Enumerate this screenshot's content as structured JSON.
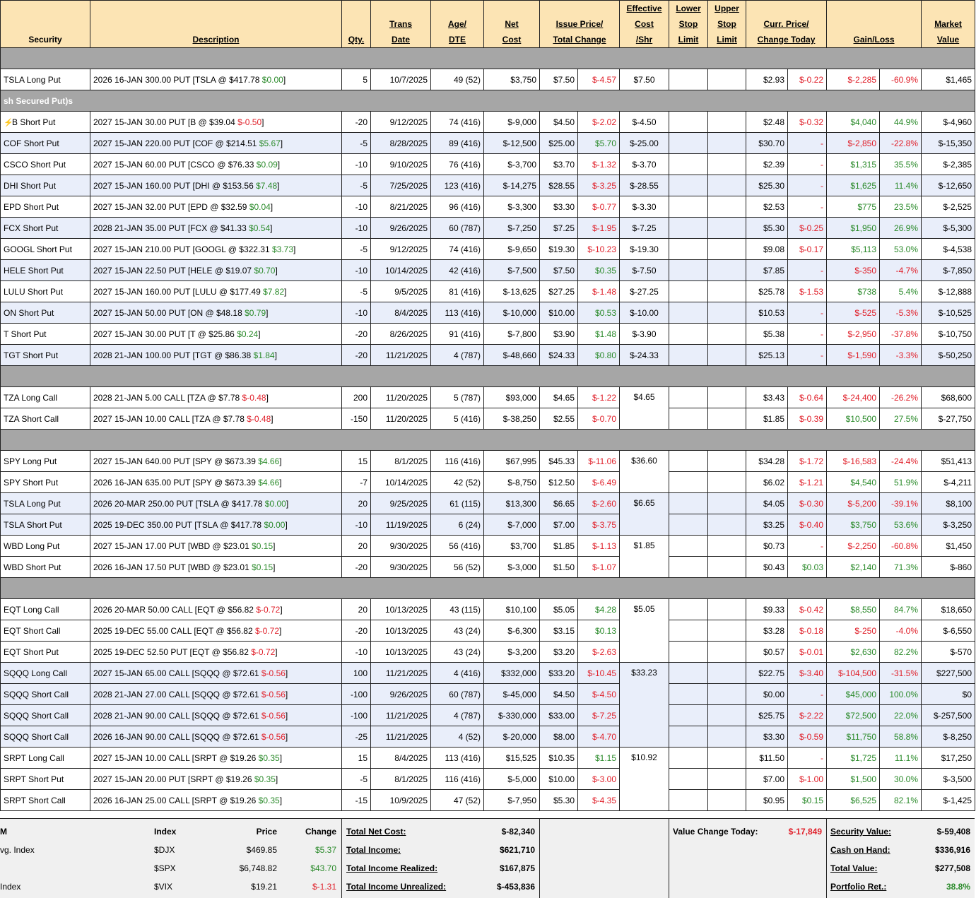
{
  "headers": {
    "security": [
      "Security"
    ],
    "description": [
      "Description"
    ],
    "qty": [
      "Qty."
    ],
    "trans_date": [
      "Trans",
      "Date"
    ],
    "age_dte": [
      "Age/",
      "DTE"
    ],
    "net_cost": [
      "Net",
      "Cost"
    ],
    "issue_price": [
      "Issue Price/",
      "Total Change"
    ],
    "effective_cost": [
      "Effective",
      "Cost",
      "/Shr"
    ],
    "lower_stop": [
      "Lower",
      "Stop",
      "Limit"
    ],
    "upper_stop": [
      "Upper",
      "Stop",
      "Limit"
    ],
    "curr_price": [
      "Curr. Price/",
      "Change Today"
    ],
    "gain_loss": [
      "Gain/Loss"
    ],
    "market_value": [
      "Market",
      "Value"
    ]
  },
  "rows": [
    {
      "type": "section",
      "label": ""
    },
    {
      "sec": "TSLA Long Put",
      "desc": "2026 16-JAN 300.00 PUT [TSLA @ $417.78",
      "dchg": "$0.00",
      "dcls": "pos",
      "qty": "5",
      "date": "10/7/2025",
      "age": "49 (52)",
      "cost": "$3,750",
      "issue": "$7.50",
      "tchg": "$-4.57",
      "tcls": "neg",
      "eff": "$7.50",
      "cur": "$2.93",
      "cchg": "$-0.22",
      "ccls": "neg",
      "gl": "$-2,285",
      "glp": "-60.9%",
      "gcls": "neg",
      "mv": "$1,465",
      "alt": false
    },
    {
      "type": "section",
      "label": "sh Secured Put)s"
    },
    {
      "sec": "B Short Put",
      "bolt": true,
      "desc": "2027 15-JAN 30.00 PUT [B @ $39.04",
      "dchg": "$-0.50",
      "dcls": "neg",
      "qty": "-20",
      "date": "9/12/2025",
      "age": "74 (416)",
      "cost": "$-9,000",
      "issue": "$4.50",
      "tchg": "$-2.02",
      "tcls": "neg",
      "eff": "$-4.50",
      "cur": "$2.48",
      "cchg": "$-0.32",
      "ccls": "neg",
      "gl": "$4,040",
      "glp": "44.9%",
      "gcls": "pos",
      "mv": "$-4,960",
      "alt": false
    },
    {
      "sec": "COF Short Put",
      "desc": "2027 15-JAN 220.00 PUT [COF @ $214.51",
      "dchg": "$5.67",
      "dcls": "pos",
      "qty": "-5",
      "date": "8/28/2025",
      "age": "89 (416)",
      "cost": "$-12,500",
      "issue": "$25.00",
      "tchg": "$5.70",
      "tcls": "pos",
      "eff": "$-25.00",
      "cur": "$30.70",
      "cchg": "-",
      "ccls": "neg",
      "gl": "$-2,850",
      "glp": "-22.8%",
      "gcls": "neg",
      "mv": "$-15,350",
      "alt": true
    },
    {
      "sec": "CSCO Short Put",
      "desc": "2027 15-JAN 60.00 PUT [CSCO @ $76.33",
      "dchg": "$0.09",
      "dcls": "pos",
      "qty": "-10",
      "date": "9/10/2025",
      "age": "76 (416)",
      "cost": "$-3,700",
      "issue": "$3.70",
      "tchg": "$-1.32",
      "tcls": "neg",
      "eff": "$-3.70",
      "cur": "$2.39",
      "cchg": "-",
      "ccls": "neg",
      "gl": "$1,315",
      "glp": "35.5%",
      "gcls": "pos",
      "mv": "$-2,385",
      "alt": false
    },
    {
      "sec": "DHI Short Put",
      "desc": "2027 15-JAN 160.00 PUT [DHI @ $153.56",
      "dchg": "$7.48",
      "dcls": "pos",
      "qty": "-5",
      "date": "7/25/2025",
      "age": "123 (416)",
      "cost": "$-14,275",
      "issue": "$28.55",
      "tchg": "$-3.25",
      "tcls": "neg",
      "eff": "$-28.55",
      "cur": "$25.30",
      "cchg": "-",
      "ccls": "neg",
      "gl": "$1,625",
      "glp": "11.4%",
      "gcls": "pos",
      "mv": "$-12,650",
      "alt": true
    },
    {
      "sec": "EPD Short Put",
      "desc": "2027 15-JAN 32.00 PUT [EPD @ $32.59",
      "dchg": "$0.04",
      "dcls": "pos",
      "qty": "-10",
      "date": "8/21/2025",
      "age": "96 (416)",
      "cost": "$-3,300",
      "issue": "$3.30",
      "tchg": "$-0.77",
      "tcls": "neg",
      "eff": "$-3.30",
      "cur": "$2.53",
      "cchg": "-",
      "ccls": "neg",
      "gl": "$775",
      "glp": "23.5%",
      "gcls": "pos",
      "mv": "$-2,525",
      "alt": false
    },
    {
      "sec": "FCX Short Put",
      "desc": "2028 21-JAN 35.00 PUT [FCX @ $41.33",
      "dchg": "$0.54",
      "dcls": "pos",
      "qty": "-10",
      "date": "9/26/2025",
      "age": "60 (787)",
      "cost": "$-7,250",
      "issue": "$7.25",
      "tchg": "$-1.95",
      "tcls": "neg",
      "eff": "$-7.25",
      "cur": "$5.30",
      "cchg": "$-0.25",
      "ccls": "neg",
      "gl": "$1,950",
      "glp": "26.9%",
      "gcls": "pos",
      "mv": "$-5,300",
      "alt": true
    },
    {
      "sec": "GOOGL Short Put",
      "desc": "2027 15-JAN 210.00 PUT [GOOGL @ $322.31",
      "dchg": "$3.73",
      "dcls": "pos",
      "qty": "-5",
      "date": "9/12/2025",
      "age": "74 (416)",
      "cost": "$-9,650",
      "issue": "$19.30",
      "tchg": "$-10.23",
      "tcls": "neg",
      "eff": "$-19.30",
      "cur": "$9.08",
      "cchg": "$-0.17",
      "ccls": "neg",
      "gl": "$5,113",
      "glp": "53.0%",
      "gcls": "pos",
      "mv": "$-4,538",
      "alt": false
    },
    {
      "sec": "HELE Short Put",
      "desc": "2027 15-JAN 22.50 PUT [HELE @ $19.07",
      "dchg": "$0.70",
      "dcls": "pos",
      "qty": "-10",
      "date": "10/14/2025",
      "age": "42 (416)",
      "cost": "$-7,500",
      "issue": "$7.50",
      "tchg": "$0.35",
      "tcls": "pos",
      "eff": "$-7.50",
      "cur": "$7.85",
      "cchg": "-",
      "ccls": "neg",
      "gl": "$-350",
      "glp": "-4.7%",
      "gcls": "neg",
      "mv": "$-7,850",
      "alt": true
    },
    {
      "sec": "LULU Short Put",
      "desc": "2027 15-JAN 160.00 PUT [LULU @ $177.49",
      "dchg": "$7.82",
      "dcls": "pos",
      "qty": "-5",
      "date": "9/5/2025",
      "age": "81 (416)",
      "cost": "$-13,625",
      "issue": "$27.25",
      "tchg": "$-1.48",
      "tcls": "neg",
      "eff": "$-27.25",
      "cur": "$25.78",
      "cchg": "$-1.53",
      "ccls": "neg",
      "gl": "$738",
      "glp": "5.4%",
      "gcls": "pos",
      "mv": "$-12,888",
      "alt": false
    },
    {
      "sec": "ON Short Put",
      "desc": "2027 15-JAN 50.00 PUT [ON @ $48.18",
      "dchg": "$0.79",
      "dcls": "pos",
      "qty": "-10",
      "date": "8/4/2025",
      "age": "113 (416)",
      "cost": "$-10,000",
      "issue": "$10.00",
      "tchg": "$0.53",
      "tcls": "pos",
      "eff": "$-10.00",
      "cur": "$10.53",
      "cchg": "-",
      "ccls": "neg",
      "gl": "$-525",
      "glp": "-5.3%",
      "gcls": "neg",
      "mv": "$-10,525",
      "alt": true
    },
    {
      "sec": "T Short Put",
      "desc": "2027 15-JAN 30.00 PUT [T @ $25.86",
      "dchg": "$0.24",
      "dcls": "pos",
      "qty": "-20",
      "date": "8/26/2025",
      "age": "91 (416)",
      "cost": "$-7,800",
      "issue": "$3.90",
      "tchg": "$1.48",
      "tcls": "pos",
      "eff": "$-3.90",
      "cur": "$5.38",
      "cchg": "-",
      "ccls": "neg",
      "gl": "$-2,950",
      "glp": "-37.8%",
      "gcls": "neg",
      "mv": "$-10,750",
      "alt": false
    },
    {
      "sec": "TGT Short Put",
      "desc": "2028 21-JAN 100.00 PUT [TGT @ $86.38",
      "dchg": "$1.84",
      "dcls": "pos",
      "qty": "-20",
      "date": "11/21/2025",
      "age": "4 (787)",
      "cost": "$-48,660",
      "issue": "$24.33",
      "tchg": "$0.80",
      "tcls": "pos",
      "eff": "$-24.33",
      "cur": "$25.13",
      "cchg": "-",
      "ccls": "neg",
      "gl": "$-1,590",
      "glp": "-3.3%",
      "gcls": "neg",
      "mv": "$-50,250",
      "alt": true
    },
    {
      "type": "section",
      "label": ""
    },
    {
      "sec": "TZA Long Call",
      "desc": "2028 21-JAN 5.00 CALL [TZA @ $7.78",
      "dchg": "$-0.48",
      "dcls": "neg",
      "qty": "200",
      "date": "11/20/2025",
      "age": "5 (787)",
      "cost": "$93,000",
      "issue": "$4.65",
      "tchg": "$-1.22",
      "tcls": "neg",
      "eff": "$4.65",
      "effspan": 2,
      "cur": "$3.43",
      "cchg": "$-0.64",
      "ccls": "neg",
      "gl": "$-24,400",
      "glp": "-26.2%",
      "gcls": "neg",
      "mv": "$68,600",
      "alt": false
    },
    {
      "sec": "TZA Short Call",
      "desc": "2027 15-JAN 10.00 CALL [TZA @ $7.78",
      "dchg": "$-0.48",
      "dcls": "neg",
      "qty": "-150",
      "date": "11/20/2025",
      "age": "5 (416)",
      "cost": "$-38,250",
      "issue": "$2.55",
      "tchg": "$-0.70",
      "tcls": "neg",
      "eff": null,
      "cur": "$1.85",
      "cchg": "$-0.39",
      "ccls": "neg",
      "gl": "$10,500",
      "glp": "27.5%",
      "gcls": "pos",
      "mv": "$-27,750",
      "alt": false
    },
    {
      "type": "section",
      "label": ""
    },
    {
      "sec": "SPY Long Put",
      "desc": "2027 15-JAN 640.00 PUT [SPY @ $673.39",
      "dchg": "$4.66",
      "dcls": "pos",
      "qty": "15",
      "date": "8/1/2025",
      "age": "116 (416)",
      "cost": "$67,995",
      "issue": "$45.33",
      "tchg": "$-11.06",
      "tcls": "neg",
      "eff": "$36.60",
      "effspan": 2,
      "cur": "$34.28",
      "cchg": "$-1.72",
      "ccls": "neg",
      "gl": "$-16,583",
      "glp": "-24.4%",
      "gcls": "neg",
      "mv": "$51,413",
      "alt": false
    },
    {
      "sec": "SPY Short Put",
      "desc": "2026 16-JAN 635.00 PUT [SPY @ $673.39",
      "dchg": "$4.66",
      "dcls": "pos",
      "qty": "-7",
      "date": "10/14/2025",
      "age": "42 (52)",
      "cost": "$-8,750",
      "issue": "$12.50",
      "tchg": "$-6.49",
      "tcls": "neg",
      "eff": null,
      "cur": "$6.02",
      "cchg": "$-1.21",
      "ccls": "neg",
      "gl": "$4,540",
      "glp": "51.9%",
      "gcls": "pos",
      "mv": "$-4,211",
      "alt": false
    },
    {
      "sec": "TSLA Long Put",
      "desc": "2026 20-MAR 250.00 PUT [TSLA @ $417.78",
      "dchg": "$0.00",
      "dcls": "pos",
      "qty": "20",
      "date": "9/25/2025",
      "age": "61 (115)",
      "cost": "$13,300",
      "issue": "$6.65",
      "tchg": "$-2.60",
      "tcls": "neg",
      "eff": "$6.65",
      "effspan": 2,
      "cur": "$4.05",
      "cchg": "$-0.30",
      "ccls": "neg",
      "gl": "$-5,200",
      "glp": "-39.1%",
      "gcls": "neg",
      "mv": "$8,100",
      "alt": true
    },
    {
      "sec": "TSLA Short Put",
      "desc": "2025 19-DEC 350.00 PUT [TSLA @ $417.78",
      "dchg": "$0.00",
      "dcls": "pos",
      "qty": "-10",
      "date": "11/19/2025",
      "age": "6 (24)",
      "cost": "$-7,000",
      "issue": "$7.00",
      "tchg": "$-3.75",
      "tcls": "neg",
      "eff": null,
      "cur": "$3.25",
      "cchg": "$-0.40",
      "ccls": "neg",
      "gl": "$3,750",
      "glp": "53.6%",
      "gcls": "pos",
      "mv": "$-3,250",
      "alt": true
    },
    {
      "sec": "WBD Long Put",
      "desc": "2027 15-JAN 17.00 PUT [WBD @ $23.01",
      "dchg": "$0.15",
      "dcls": "pos",
      "qty": "20",
      "date": "9/30/2025",
      "age": "56 (416)",
      "cost": "$3,700",
      "issue": "$1.85",
      "tchg": "$-1.13",
      "tcls": "neg",
      "eff": "$1.85",
      "effspan": 2,
      "cur": "$0.73",
      "cchg": "-",
      "ccls": "neg",
      "gl": "$-2,250",
      "glp": "-60.8%",
      "gcls": "neg",
      "mv": "$1,450",
      "alt": false
    },
    {
      "sec": "WBD Short Put",
      "desc": "2026 16-JAN 17.50 PUT [WBD @ $23.01",
      "dchg": "$0.15",
      "dcls": "pos",
      "qty": "-20",
      "date": "9/30/2025",
      "age": "56 (52)",
      "cost": "$-3,000",
      "issue": "$1.50",
      "tchg": "$-1.07",
      "tcls": "neg",
      "eff": null,
      "cur": "$0.43",
      "cchg": "$0.03",
      "ccls": "pos",
      "gl": "$2,140",
      "glp": "71.3%",
      "gcls": "pos",
      "mv": "$-860",
      "alt": false
    },
    {
      "type": "section",
      "label": ""
    },
    {
      "sec": "EQT Long Call",
      "desc": "2026 20-MAR 50.00 CALL [EQT @ $56.82",
      "dchg": "$-0.72",
      "dcls": "neg",
      "qty": "20",
      "date": "10/13/2025",
      "age": "43 (115)",
      "cost": "$10,100",
      "issue": "$5.05",
      "tchg": "$4.28",
      "tcls": "pos",
      "eff": "$5.05",
      "effspan": 3,
      "cur": "$9.33",
      "cchg": "$-0.42",
      "ccls": "neg",
      "gl": "$8,550",
      "glp": "84.7%",
      "gcls": "pos",
      "mv": "$18,650",
      "alt": false
    },
    {
      "sec": "EQT Short Call",
      "desc": "2025 19-DEC 55.00 CALL [EQT @ $56.82",
      "dchg": "$-0.72",
      "dcls": "neg",
      "qty": "-20",
      "date": "10/13/2025",
      "age": "43 (24)",
      "cost": "$-6,300",
      "issue": "$3.15",
      "tchg": "$0.13",
      "tcls": "pos",
      "eff": null,
      "cur": "$3.28",
      "cchg": "$-0.18",
      "ccls": "neg",
      "gl": "$-250",
      "glp": "-4.0%",
      "gcls": "neg",
      "mv": "$-6,550",
      "alt": false
    },
    {
      "sec": "EQT Short Put",
      "desc": "2025 19-DEC 52.50 PUT [EQT @ $56.82",
      "dchg": "$-0.72",
      "dcls": "neg",
      "qty": "-10",
      "date": "10/13/2025",
      "age": "43 (24)",
      "cost": "$-3,200",
      "issue": "$3.20",
      "tchg": "$-2.63",
      "tcls": "neg",
      "eff": null,
      "cur": "$0.57",
      "cchg": "$-0.01",
      "ccls": "neg",
      "gl": "$2,630",
      "glp": "82.2%",
      "gcls": "pos",
      "mv": "$-570",
      "alt": false
    },
    {
      "sec": "SQQQ Long Call",
      "desc": "2027 15-JAN 65.00 CALL [SQQQ @ $72.61",
      "dchg": "$-0.56",
      "dcls": "neg",
      "qty": "100",
      "date": "11/21/2025",
      "age": "4 (416)",
      "cost": "$332,000",
      "issue": "$33.20",
      "tchg": "$-10.45",
      "tcls": "neg",
      "eff": "$33.23",
      "effspan": 4,
      "cur": "$22.75",
      "cchg": "$-3.40",
      "ccls": "neg",
      "gl": "$-104,500",
      "glp": "-31.5%",
      "gcls": "neg",
      "mv": "$227,500",
      "alt": true
    },
    {
      "sec": "SQQQ Short Call",
      "desc": "2028 21-JAN 27.00 CALL [SQQQ @ $72.61",
      "dchg": "$-0.56",
      "dcls": "neg",
      "qty": "-100",
      "date": "9/26/2025",
      "age": "60 (787)",
      "cost": "$-45,000",
      "issue": "$4.50",
      "tchg": "$-4.50",
      "tcls": "neg",
      "eff": null,
      "cur": "$0.00",
      "cchg": "-",
      "ccls": "neg",
      "gl": "$45,000",
      "glp": "100.0%",
      "gcls": "pos",
      "mv": "$0",
      "alt": true
    },
    {
      "sec": "SQQQ Short Call",
      "desc": "2028 21-JAN 90.00 CALL [SQQQ @ $72.61",
      "dchg": "$-0.56",
      "dcls": "neg",
      "qty": "-100",
      "date": "11/21/2025",
      "age": "4 (787)",
      "cost": "$-330,000",
      "issue": "$33.00",
      "tchg": "$-7.25",
      "tcls": "neg",
      "eff": null,
      "cur": "$25.75",
      "cchg": "$-2.22",
      "ccls": "neg",
      "gl": "$72,500",
      "glp": "22.0%",
      "gcls": "pos",
      "mv": "$-257,500",
      "alt": true
    },
    {
      "sec": "SQQQ Short Call",
      "desc": "2026 16-JAN 90.00 CALL [SQQQ @ $72.61",
      "dchg": "$-0.56",
      "dcls": "neg",
      "qty": "-25",
      "date": "11/21/2025",
      "age": "4 (52)",
      "cost": "$-20,000",
      "issue": "$8.00",
      "tchg": "$-4.70",
      "tcls": "neg",
      "eff": null,
      "cur": "$3.30",
      "cchg": "$-0.59",
      "ccls": "neg",
      "gl": "$11,750",
      "glp": "58.8%",
      "gcls": "pos",
      "mv": "$-8,250",
      "alt": true
    },
    {
      "sec": "SRPT Long Call",
      "desc": "2027 15-JAN 10.00 CALL [SRPT @ $19.26",
      "dchg": "$0.35",
      "dcls": "pos",
      "qty": "15",
      "date": "8/4/2025",
      "age": "113 (416)",
      "cost": "$15,525",
      "issue": "$10.35",
      "tchg": "$1.15",
      "tcls": "pos",
      "eff": "$10.92",
      "effspan": 3,
      "cur": "$11.50",
      "cchg": "-",
      "ccls": "neg",
      "gl": "$1,725",
      "glp": "11.1%",
      "gcls": "pos",
      "mv": "$17,250",
      "alt": false
    },
    {
      "sec": "SRPT Short Put",
      "desc": "2027 15-JAN 20.00 PUT [SRPT @ $19.26",
      "dchg": "$0.35",
      "dcls": "pos",
      "qty": "-5",
      "date": "8/1/2025",
      "age": "116 (416)",
      "cost": "$-5,000",
      "issue": "$10.00",
      "tchg": "$-3.00",
      "tcls": "neg",
      "eff": null,
      "cur": "$7.00",
      "cchg": "$-1.00",
      "ccls": "neg",
      "gl": "$1,500",
      "glp": "30.0%",
      "gcls": "pos",
      "mv": "$-3,500",
      "alt": false
    },
    {
      "sec": "SRPT Short Call",
      "desc": "2026 16-JAN 25.00 CALL [SRPT @ $19.26",
      "dchg": "$0.35",
      "dcls": "pos",
      "qty": "-15",
      "date": "10/9/2025",
      "age": "47 (52)",
      "cost": "$-7,950",
      "issue": "$5.30",
      "tchg": "$-4.35",
      "tcls": "neg",
      "eff": null,
      "cur": "$0.95",
      "cchg": "$0.15",
      "ccls": "pos",
      "gl": "$6,525",
      "glp": "82.1%",
      "gcls": "pos",
      "mv": "$-1,425",
      "alt": false
    }
  ],
  "footer": {
    "index_header": {
      "name": "M",
      "index": "Index",
      "price": "Price",
      "change": "Change"
    },
    "indexes": [
      {
        "name": "vg. Index",
        "sym": "$DJX",
        "price": "$469.85",
        "change": "$5.37",
        "cls": "pos"
      },
      {
        "name": "",
        "sym": "$SPX",
        "price": "$6,748.82",
        "change": "$43.70",
        "cls": "pos"
      },
      {
        "name": "Index",
        "sym": "$VIX",
        "price": "$19.21",
        "change": "$-1.31",
        "cls": "neg"
      }
    ],
    "totals": [
      {
        "label": "Total Net Cost:",
        "value": "$-82,340"
      },
      {
        "label": "Total Income:",
        "value": "$621,710"
      },
      {
        "label": "Total Income Realized:",
        "value": "$167,875"
      },
      {
        "label": "Total Income Unrealized:",
        "value": "$-453,836"
      }
    ],
    "value_change": {
      "label": "Value Change Today:",
      "value": "$-17,849"
    },
    "summary": [
      {
        "label": "Security Value:",
        "value": "$-59,408",
        "cls": ""
      },
      {
        "label": "Cash on Hand:",
        "value": "$336,916",
        "cls": ""
      },
      {
        "label": "Total Value:",
        "value": "$277,508",
        "cls": ""
      },
      {
        "label": "Portfolio Ret.:",
        "value": "38.8%",
        "cls": "pos"
      }
    ],
    "colors": {
      "positive": "#2a8a2a",
      "negative": "#e0202a",
      "header_bg": "#fce4b4",
      "section_bg": "#a6a6a6",
      "alt_row_bg": "#e9eefa"
    }
  }
}
